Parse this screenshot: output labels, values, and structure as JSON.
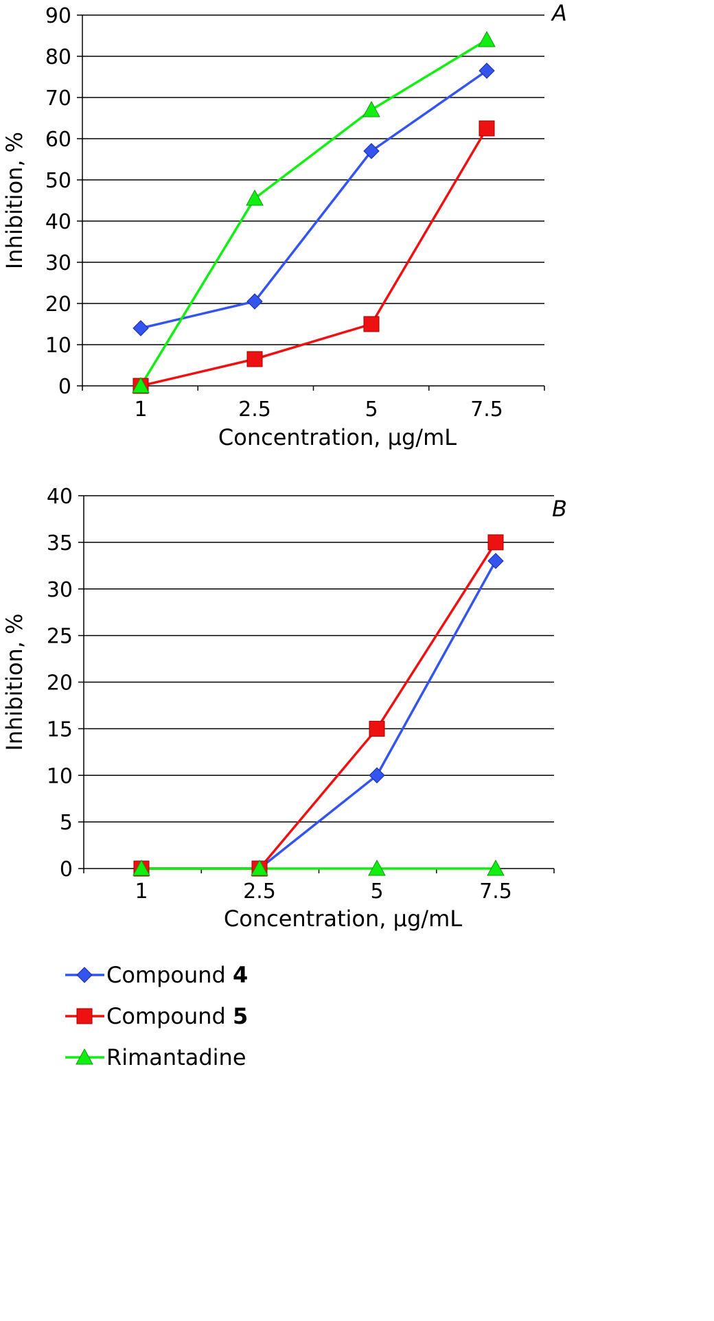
{
  "legend": [
    {
      "name_prefix": "Compound ",
      "name_bold": "4",
      "color": "#3355ee",
      "marker": "diamond"
    },
    {
      "name_prefix": "Compound ",
      "name_bold": "5",
      "color": "#ee1111",
      "marker": "square"
    },
    {
      "name_prefix": "Rimantadine",
      "name_bold": "",
      "color": "#11ee11",
      "marker": "triangle"
    }
  ],
  "chart_data": [
    {
      "type": "line",
      "panel_label": "A",
      "categories": [
        "1",
        "2.5",
        "5",
        "7.5"
      ],
      "xlabel": "Concentration, µg/mL",
      "ylabel": "Inhibition, %",
      "ylim": [
        0,
        90
      ],
      "yticks": [
        0,
        10,
        20,
        30,
        40,
        50,
        60,
        70,
        80,
        90
      ],
      "grid": true,
      "series": [
        {
          "name": "Compound 4",
          "color": "#3355ee",
          "marker": "diamond",
          "values": [
            14,
            20.5,
            57,
            76.5
          ]
        },
        {
          "name": "Compound 5",
          "color": "#ee1111",
          "marker": "square",
          "values": [
            0,
            6.5,
            15,
            62.5
          ]
        },
        {
          "name": "Rimantadine",
          "color": "#11ee11",
          "marker": "triangle",
          "values": [
            0,
            45.5,
            67,
            84
          ]
        }
      ]
    },
    {
      "type": "line",
      "panel_label": "B",
      "categories": [
        "1",
        "2.5",
        "5",
        "7.5"
      ],
      "xlabel": "Concentration, µg/mL",
      "ylabel": "Inhibition, %",
      "ylim": [
        0,
        40
      ],
      "yticks": [
        0,
        5,
        10,
        15,
        20,
        25,
        30,
        35,
        40
      ],
      "grid": true,
      "series": [
        {
          "name": "Compound 4",
          "color": "#3355ee",
          "marker": "diamond",
          "values": [
            0,
            0,
            10,
            33
          ]
        },
        {
          "name": "Compound 5",
          "color": "#ee1111",
          "marker": "square",
          "values": [
            0,
            0,
            15,
            35
          ]
        },
        {
          "name": "Rimantadine",
          "color": "#11ee11",
          "marker": "triangle",
          "values": [
            0,
            0,
            0,
            0
          ]
        }
      ]
    }
  ]
}
